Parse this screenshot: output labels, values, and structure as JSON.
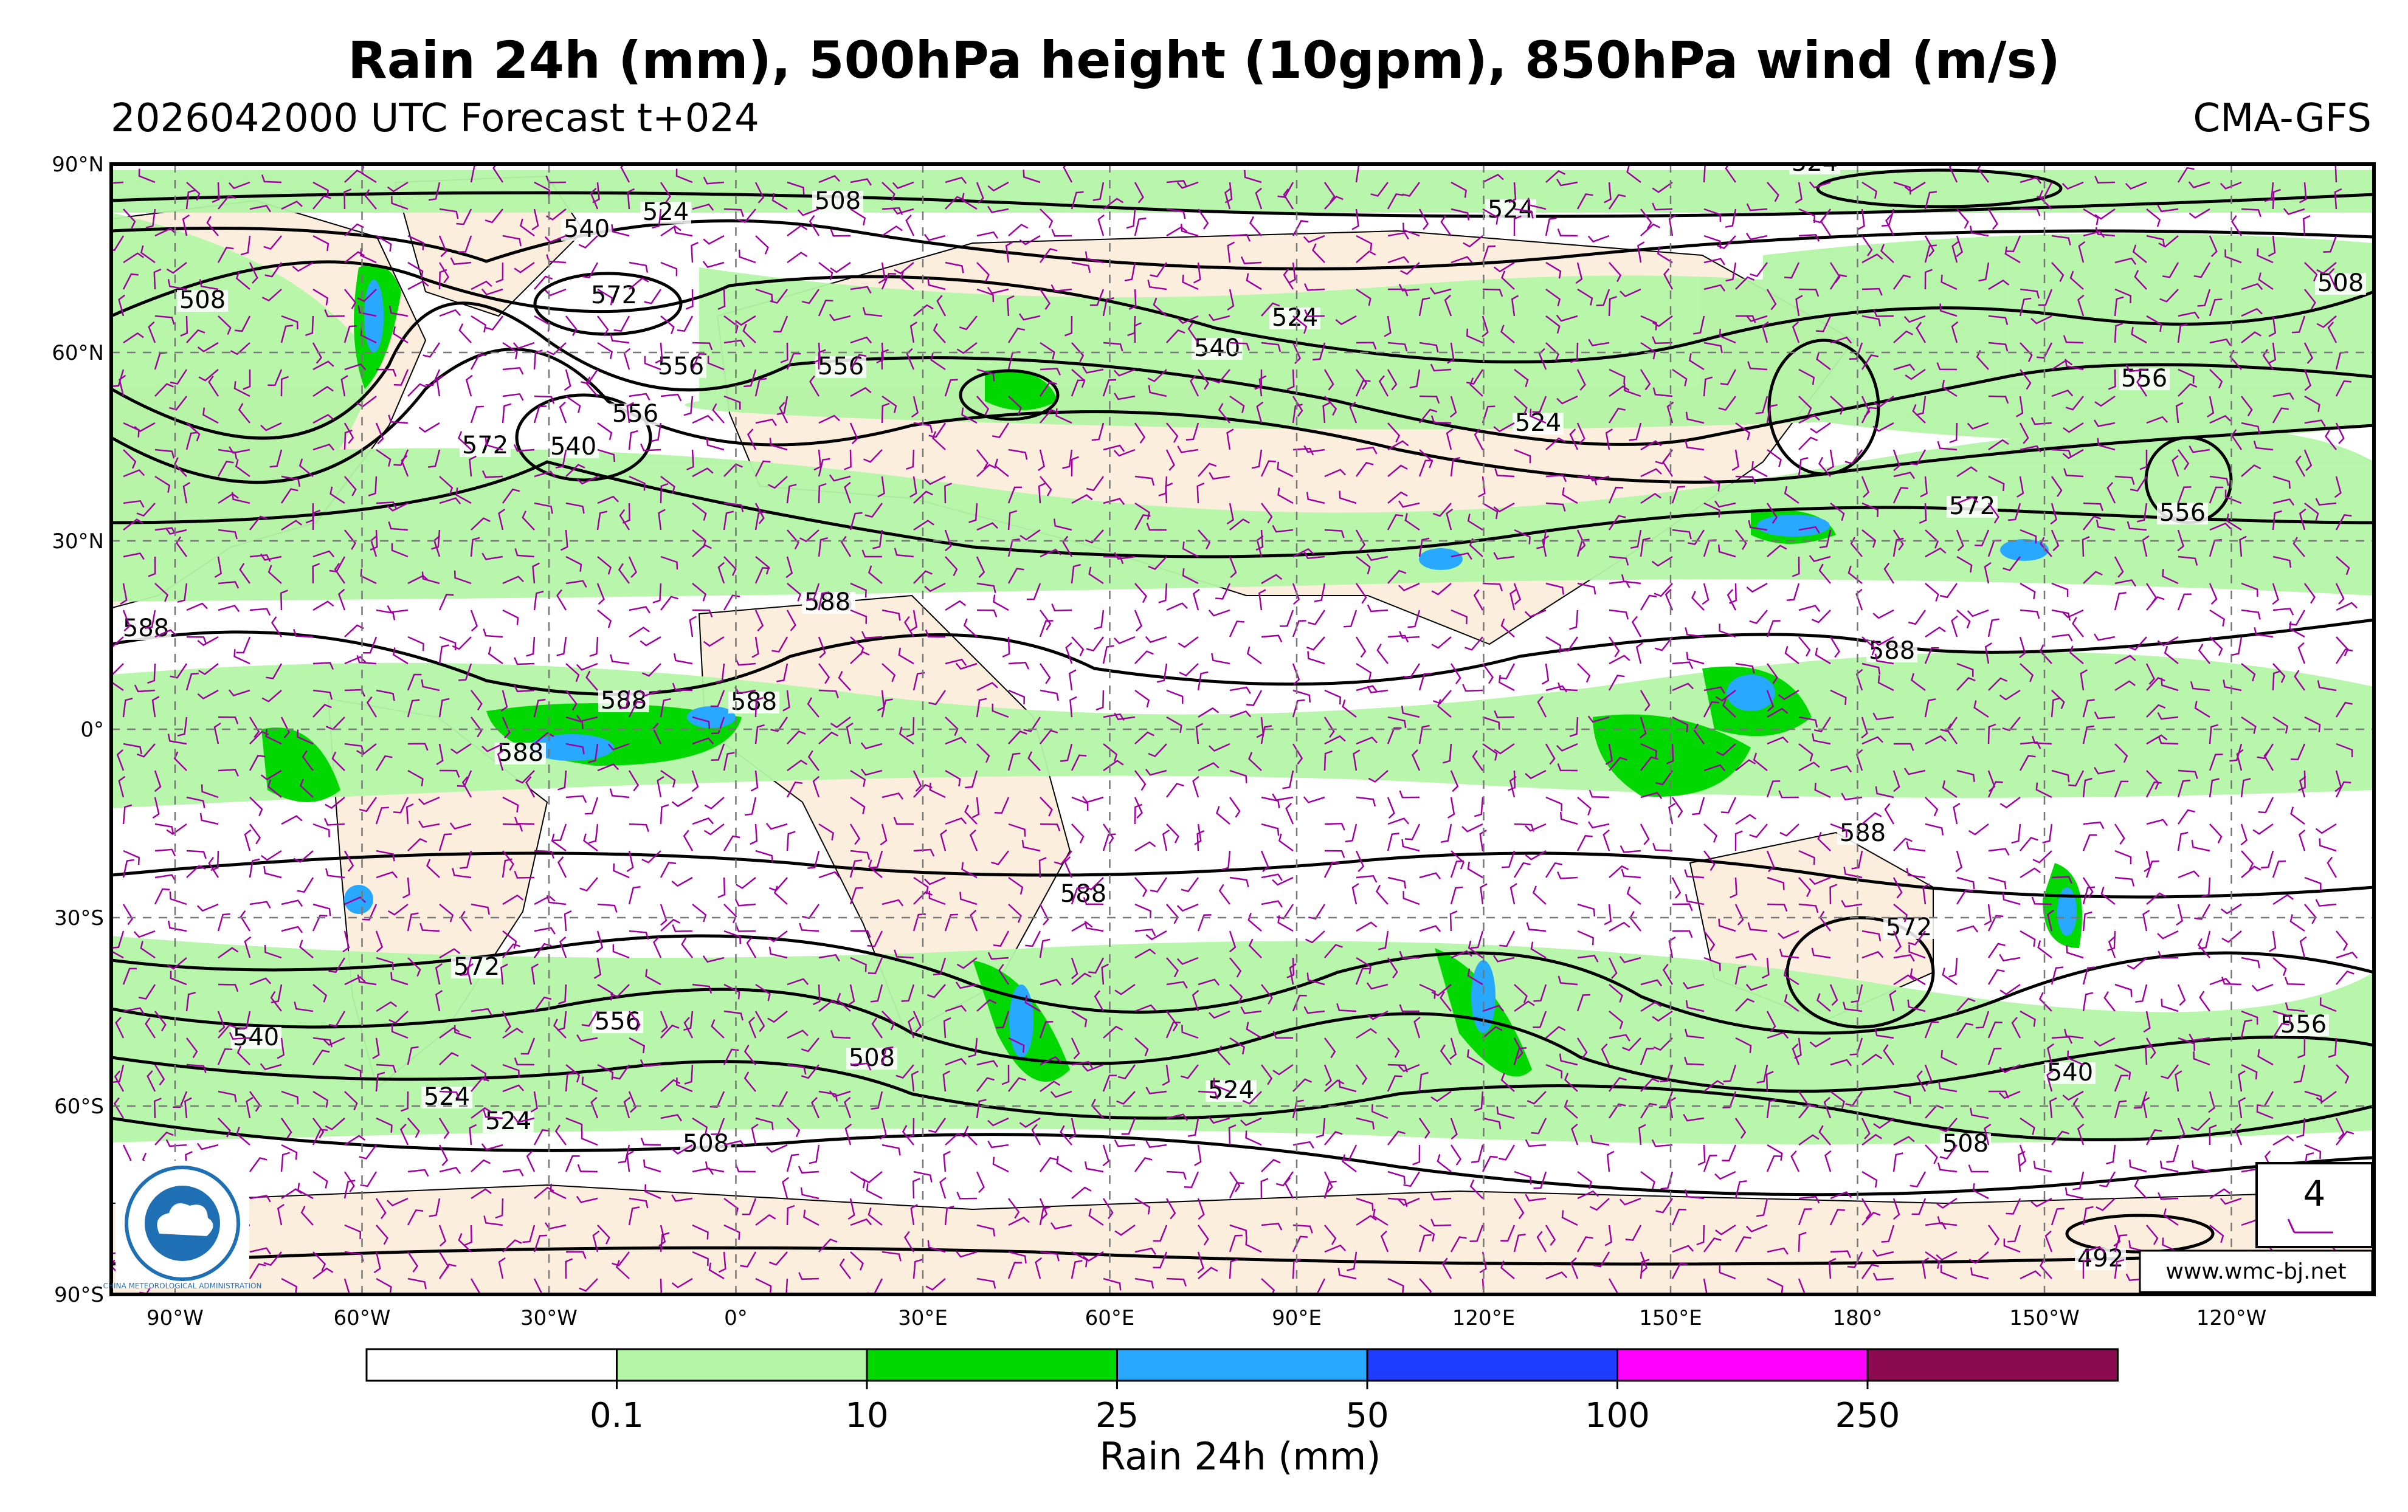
{
  "header": {
    "title": "Rain 24h (mm), 500hPa height (10gpm), 850hPa wind (m/s)",
    "subtitle": "2026042000 UTC Forecast t+024",
    "model": "CMA-GFS"
  },
  "map": {
    "lat_labels": [
      "90°N",
      "60°N",
      "30°N",
      "0°",
      "30°S",
      "60°S",
      "90°S"
    ],
    "lon_labels": [
      "90°W",
      "60°W",
      "30°W",
      "0°",
      "30°E",
      "60°E",
      "90°E",
      "120°E",
      "150°E",
      "180°",
      "150°W",
      "120°W"
    ],
    "contour_labels": [
      "524",
      "508",
      "524",
      "540",
      "524",
      "572",
      "508",
      "508",
      "556",
      "556",
      "556",
      "540",
      "524",
      "540",
      "524",
      "556",
      "572",
      "556",
      "572",
      "556",
      "588",
      "588",
      "588",
      "588",
      "588",
      "588",
      "588",
      "588",
      "572",
      "572",
      "556",
      "540",
      "556",
      "524",
      "524",
      "508",
      "508",
      "524",
      "508",
      "540",
      "556",
      "492"
    ],
    "website": "www.wmc-bj.net",
    "wind_reference": "4",
    "logo_text": "CHINA METEOROLOGICAL ADMINISTRATION"
  },
  "legend": {
    "title": "Rain 24h (mm)",
    "ticks": [
      "0.1",
      "10",
      "25",
      "50",
      "100",
      "250"
    ],
    "colors": [
      "#ffffff",
      "#b4f5a6",
      "#00d800",
      "#28a8ff",
      "#1e3cff",
      "#ff00ff",
      "#8b0a50"
    ]
  },
  "colors": {
    "land": "#fbeedd",
    "rain_light": "#b4f5a6",
    "rain_moderate": "#00d800",
    "rain_heavy": "#28a8ff",
    "wind_barbs": "#a000a0",
    "contours": "#000000",
    "logo_blue": "#1f6fb5"
  }
}
